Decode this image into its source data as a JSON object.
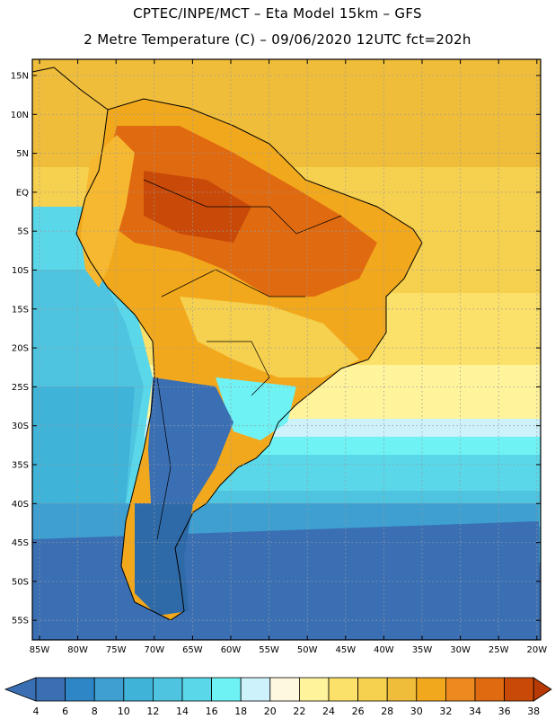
{
  "header": {
    "line1": "CPTEC/INPE/MCT –  Eta Model 15km – GFS",
    "line2": "2 Metre Temperature (C) – 09/06/2020 12UTC fct=202h"
  },
  "map": {
    "lat_labels": [
      "15N",
      "10N",
      "5N",
      "EQ",
      "5S",
      "10S",
      "15S",
      "20S",
      "25S",
      "30S",
      "35S",
      "40S",
      "45S",
      "50S",
      "55S"
    ],
    "lon_labels": [
      "85W",
      "80W",
      "75W",
      "70W",
      "65W",
      "60W",
      "55W",
      "50W",
      "45W",
      "40W",
      "35W",
      "30W",
      "25W",
      "20W"
    ]
  },
  "colorbar": {
    "labels": [
      "4",
      "6",
      "8",
      "10",
      "12",
      "14",
      "16",
      "18",
      "20",
      "22",
      "24",
      "26",
      "28",
      "30",
      "32",
      "34",
      "36",
      "38"
    ],
    "colors": [
      "#3a6fb4",
      "#2f86c6",
      "#3e9fd0",
      "#3fb3d8",
      "#4ec4e0",
      "#5ad7e8",
      "#6ff2f4",
      "#cdf2fb",
      "#fff8e0",
      "#fff39c",
      "#fbe06a",
      "#f6d04f",
      "#efbd3a",
      "#f2a81c",
      "#ec8a20",
      "#e06a10",
      "#c94a08"
    ],
    "end_low": "#3a6fb4",
    "end_high": "#b73a06"
  }
}
